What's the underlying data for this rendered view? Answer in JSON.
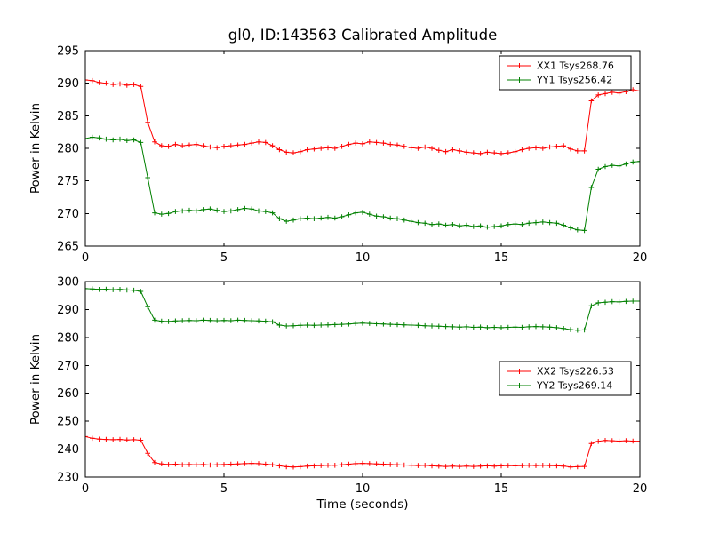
{
  "title": "gl0, ID:143563 Calibrated Amplitude",
  "xlabel": "Time (seconds)",
  "chart_data": [
    {
      "type": "line",
      "ylabel": "Power in Kelvin",
      "xlim": [
        0,
        20
      ],
      "ylim": [
        265,
        295
      ],
      "xticks": [
        0,
        5,
        10,
        15,
        20
      ],
      "yticks": [
        265,
        270,
        275,
        280,
        285,
        290,
        295
      ],
      "legend_position": "upper right",
      "x": [
        0,
        0.25,
        0.5,
        0.75,
        1,
        1.25,
        1.5,
        1.75,
        2,
        2.25,
        2.5,
        2.75,
        3,
        3.25,
        3.5,
        3.75,
        4,
        4.25,
        4.5,
        4.75,
        5,
        5.25,
        5.5,
        5.75,
        6,
        6.25,
        6.5,
        6.75,
        7,
        7.25,
        7.5,
        7.75,
        8,
        8.25,
        8.5,
        8.75,
        9,
        9.25,
        9.5,
        9.75,
        10,
        10.25,
        10.5,
        10.75,
        11,
        11.25,
        11.5,
        11.75,
        12,
        12.25,
        12.5,
        12.75,
        13,
        13.25,
        13.5,
        13.75,
        14,
        14.25,
        14.5,
        14.75,
        15,
        15.25,
        15.5,
        15.75,
        16,
        16.25,
        16.5,
        16.75,
        17,
        17.25,
        17.5,
        17.75,
        18,
        18.25,
        18.5,
        18.75,
        19,
        19.25,
        19.5,
        19.75,
        20
      ],
      "series": [
        {
          "name": "XX1 Tsys268.76",
          "color": "#ff0000",
          "marker": "+",
          "values": [
            290.5,
            290.4,
            290.1,
            290.0,
            289.8,
            289.9,
            289.7,
            289.8,
            289.5,
            284.0,
            281.0,
            280.4,
            280.3,
            280.6,
            280.4,
            280.5,
            280.6,
            280.4,
            280.2,
            280.1,
            280.3,
            280.4,
            280.5,
            280.6,
            280.8,
            281.0,
            280.9,
            280.4,
            279.8,
            279.4,
            279.3,
            279.5,
            279.8,
            279.9,
            280.0,
            280.1,
            280.0,
            280.3,
            280.6,
            280.8,
            280.7,
            281.0,
            280.9,
            280.8,
            280.6,
            280.5,
            280.3,
            280.1,
            280.0,
            280.2,
            280.0,
            279.7,
            279.5,
            279.8,
            279.6,
            279.4,
            279.3,
            279.2,
            279.4,
            279.3,
            279.2,
            279.3,
            279.5,
            279.8,
            280.0,
            280.1,
            280.0,
            280.2,
            280.3,
            280.4,
            279.9,
            279.6,
            279.6,
            287.3,
            288.2,
            288.4,
            288.6,
            288.5,
            288.7,
            289.0,
            288.8
          ]
        },
        {
          "name": "YY1 Tsys256.42",
          "color": "#008000",
          "marker": "+",
          "values": [
            281.5,
            281.7,
            281.6,
            281.4,
            281.3,
            281.4,
            281.2,
            281.3,
            280.9,
            275.5,
            270.1,
            269.9,
            270.0,
            270.3,
            270.4,
            270.5,
            270.4,
            270.6,
            270.7,
            270.5,
            270.3,
            270.4,
            270.6,
            270.8,
            270.7,
            270.4,
            270.3,
            270.1,
            269.2,
            268.8,
            269.0,
            269.2,
            269.3,
            269.2,
            269.3,
            269.4,
            269.3,
            269.5,
            269.8,
            270.1,
            270.2,
            269.9,
            269.6,
            269.5,
            269.3,
            269.2,
            269.0,
            268.8,
            268.6,
            268.5,
            268.3,
            268.4,
            268.2,
            268.3,
            268.1,
            268.2,
            268.0,
            268.1,
            267.9,
            268.0,
            268.1,
            268.3,
            268.4,
            268.3,
            268.5,
            268.6,
            268.7,
            268.6,
            268.5,
            268.2,
            267.8,
            267.5,
            267.4,
            274.0,
            276.8,
            277.2,
            277.4,
            277.3,
            277.6,
            277.9,
            278.0
          ]
        }
      ]
    },
    {
      "type": "line",
      "ylabel": "Power in Kelvin",
      "xlabel": "Time (seconds)",
      "xlim": [
        0,
        20
      ],
      "ylim": [
        230,
        300
      ],
      "xticks": [
        0,
        5,
        10,
        15,
        20
      ],
      "yticks": [
        230,
        240,
        250,
        260,
        270,
        280,
        290,
        300
      ],
      "legend_position": "center right",
      "x": [
        0,
        0.25,
        0.5,
        0.75,
        1,
        1.25,
        1.5,
        1.75,
        2,
        2.25,
        2.5,
        2.75,
        3,
        3.25,
        3.5,
        3.75,
        4,
        4.25,
        4.5,
        4.75,
        5,
        5.25,
        5.5,
        5.75,
        6,
        6.25,
        6.5,
        6.75,
        7,
        7.25,
        7.5,
        7.75,
        8,
        8.25,
        8.5,
        8.75,
        9,
        9.25,
        9.5,
        9.75,
        10,
        10.25,
        10.5,
        10.75,
        11,
        11.25,
        11.5,
        11.75,
        12,
        12.25,
        12.5,
        12.75,
        13,
        13.25,
        13.5,
        13.75,
        14,
        14.25,
        14.5,
        14.75,
        15,
        15.25,
        15.5,
        15.75,
        16,
        16.25,
        16.5,
        16.75,
        17,
        17.25,
        17.5,
        17.75,
        18,
        18.25,
        18.5,
        18.75,
        19,
        19.25,
        19.5,
        19.75,
        20
      ],
      "series": [
        {
          "name": "XX2 Tsys226.53",
          "color": "#ff0000",
          "marker": "+",
          "values": [
            244.5,
            243.9,
            243.6,
            243.5,
            243.4,
            243.5,
            243.3,
            243.4,
            243.2,
            238.5,
            235.2,
            234.7,
            234.5,
            234.6,
            234.4,
            234.5,
            234.4,
            234.5,
            234.3,
            234.4,
            234.5,
            234.6,
            234.7,
            234.8,
            234.9,
            234.8,
            234.6,
            234.4,
            234.0,
            233.7,
            233.6,
            233.7,
            233.9,
            234.0,
            234.1,
            234.2,
            234.2,
            234.4,
            234.6,
            234.8,
            234.9,
            234.8,
            234.7,
            234.6,
            234.5,
            234.4,
            234.3,
            234.2,
            234.1,
            234.2,
            234.0,
            233.9,
            233.8,
            233.9,
            233.8,
            233.9,
            233.8,
            233.9,
            234.0,
            233.9,
            234.0,
            234.1,
            234.0,
            234.1,
            234.2,
            234.1,
            234.2,
            234.1,
            234.0,
            233.9,
            233.6,
            233.7,
            233.8,
            242.0,
            242.8,
            243.1,
            243.0,
            242.9,
            243.0,
            242.9,
            242.8
          ]
        },
        {
          "name": "YY2 Tsys269.14",
          "color": "#008000",
          "marker": "+",
          "values": [
            297.5,
            297.4,
            297.2,
            297.3,
            297.1,
            297.2,
            297.0,
            296.9,
            296.5,
            291.0,
            286.2,
            285.8,
            285.7,
            285.9,
            286.0,
            286.1,
            286.0,
            286.2,
            286.1,
            286.0,
            286.1,
            286.0,
            286.2,
            286.1,
            286.0,
            285.9,
            285.8,
            285.6,
            284.4,
            284.1,
            284.2,
            284.3,
            284.4,
            284.3,
            284.4,
            284.5,
            284.6,
            284.7,
            284.8,
            285.0,
            285.1,
            285.0,
            284.9,
            284.8,
            284.7,
            284.6,
            284.5,
            284.4,
            284.3,
            284.2,
            284.1,
            284.0,
            283.9,
            283.8,
            283.7,
            283.8,
            283.6,
            283.7,
            283.5,
            283.6,
            283.5,
            283.6,
            283.7,
            283.6,
            283.8,
            283.9,
            283.8,
            283.7,
            283.5,
            283.2,
            282.8,
            282.6,
            282.7,
            291.3,
            292.4,
            292.6,
            292.8,
            292.7,
            292.9,
            293.0,
            293.0
          ]
        }
      ]
    }
  ]
}
